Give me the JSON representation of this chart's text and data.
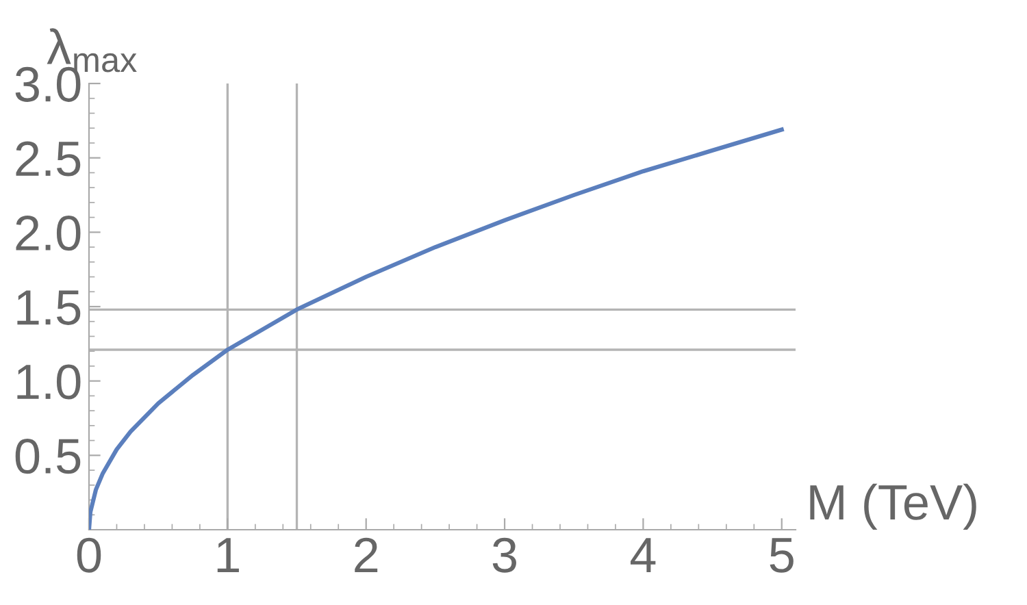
{
  "chart_data": {
    "type": "line",
    "xlabel": "M (TeV)",
    "ylabel": "λ$_{max}$",
    "x": [
      0,
      0.01,
      0.05,
      0.1,
      0.2,
      0.3,
      0.5,
      0.75,
      1,
      1.5,
      2,
      2.5,
      3,
      3.5,
      4,
      4.5,
      5
    ],
    "series": [
      {
        "color": "#5b7fbd",
        "values": [
          0,
          0.12,
          0.27,
          0.38,
          0.54,
          0.66,
          0.85,
          1.04,
          1.21,
          1.48,
          1.7,
          1.9,
          2.08,
          2.25,
          2.41,
          2.55,
          2.69
        ]
      }
    ],
    "xlim": [
      0,
      5.1
    ],
    "ylim": [
      0,
      3
    ],
    "xticks": [
      0,
      1,
      2,
      3,
      4,
      5
    ],
    "yticks": [
      0.5,
      {
        "value": 1,
        "label": "1.0"
      },
      1.5,
      {
        "value": 2,
        "label": "2.0"
      },
      2.5,
      {
        "value": 3,
        "label": "3.0"
      }
    ],
    "ref_lines": [
      {
        "axis": "x",
        "value": 1,
        "color": "#b4b4b4"
      },
      {
        "axis": "x",
        "value": 1.5,
        "color": "#b4b4b4"
      },
      {
        "axis": "y",
        "value": 1.48,
        "color": "#b4b4b4"
      },
      {
        "axis": "y",
        "value": 1.21,
        "color": "#b4b4b4"
      }
    ],
    "grid": false,
    "legend": false,
    "marker": "none",
    "line_style": "solid"
  }
}
